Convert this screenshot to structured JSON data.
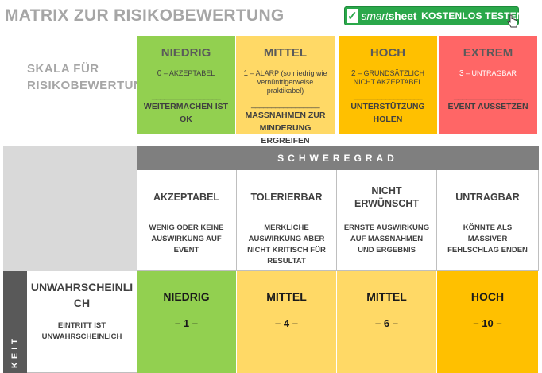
{
  "header": {
    "title": "MATRIX ZUR RISIKOBEWERTUNG",
    "smartsheet_brand_light": "smart",
    "smartsheet_brand_bold": "sheet",
    "smartsheet_cta": "KOSTENLOS TESTEN",
    "smartsheet_logo_glyph": "✓"
  },
  "scale": {
    "label": "SKALA FÜR RISIKOBEWERTUNG",
    "levels": [
      {
        "name": "NIEDRIG",
        "num": "0",
        "desc": " – AKZEPTABEL",
        "dash": "_________________",
        "action": "WEITERMACHEN IST OK",
        "color": "#92d050"
      },
      {
        "name": "MITTEL",
        "num": "1",
        "desc": " – ALARP (so niedrig wie vernünftigerweise praktikabel)",
        "dash": "_________________",
        "action": "MASSNAHMEN ZUR MINDERUNG ERGREIFEN",
        "color": "#ffd966"
      },
      {
        "name": "HOCH",
        "num": "2",
        "desc": " – GRUNDSÄTZLICH NICHT AKZEPTABEL",
        "dash": "_________________",
        "action": "UNTERSTÜTZUNG HOLEN",
        "color": "#ffc000"
      },
      {
        "name": "EXTREM",
        "num": "3",
        "desc": " – UNTRAGBAR",
        "dash": "_________________",
        "action": "EVENT AUSSETZEN",
        "color": "#ff6666"
      }
    ]
  },
  "matrix": {
    "severity_header": "SCHWEREGRAD",
    "severity_columns": [
      {
        "title": "AKZEPTABEL",
        "desc": "WENIG ODER KEINE AUSWIRKUNG AUF EVENT"
      },
      {
        "title": "TOLERIERBAR",
        "desc": "MERKLICHE AUSWIRKUNG ABER NICHT KRITISCH FÜR RESULTAT"
      },
      {
        "title": "NICHT ERWÜNSCHT",
        "desc": "ERNSTE AUSWIRKUNG AUF MASSNAHMEN UND ERGEBNIS"
      },
      {
        "title": "UNTRAGBAR",
        "desc": "KÖNNTE ALS MASSIVER FEHLSCHLAG ENDEN"
      }
    ],
    "likelihood_label": "KEIT",
    "rows": [
      {
        "title": "UNWAHRSCHEINLICH",
        "desc": "EINTRITT IST UNWAHRSCHEINLICH",
        "cells": [
          {
            "level": "NIEDRIG",
            "value": "– 1 –",
            "color": "#92d050"
          },
          {
            "level": "MITTEL",
            "value": "– 4 –",
            "color": "#ffd966"
          },
          {
            "level": "MITTEL",
            "value": "– 6 –",
            "color": "#ffd966"
          },
          {
            "level": "HOCH",
            "value": "– 10 –",
            "color": "#ffc000"
          }
        ]
      }
    ]
  }
}
